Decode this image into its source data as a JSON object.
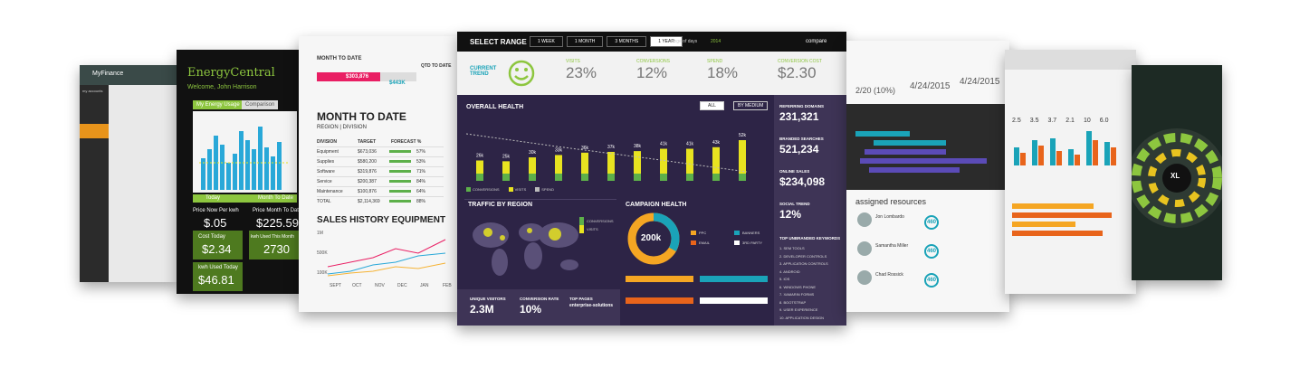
{
  "finance": {
    "title": "MyFinance",
    "menu": "my accounts"
  },
  "energy": {
    "title": "EnergyCentral",
    "welcome": "Welcome, John Harrison",
    "tabs": [
      "My Energy Usage",
      "Comparison"
    ],
    "heads": [
      "Today",
      "Month To Date"
    ],
    "stats": [
      {
        "label": "Price Now Per kwh",
        "value": "$.05"
      },
      {
        "label": "Price Month To Date",
        "value": "$225.59"
      },
      {
        "label": "Cost Today",
        "value": "$2.34"
      },
      {
        "label": "kwh Used This Month",
        "value": "2730"
      },
      {
        "label": "kwh Used Today",
        "value": "$46.81"
      }
    ]
  },
  "mtd": {
    "top": "MONTH TO DATE",
    "qtd": "QTD TO DATE",
    "amount": "$303,876",
    "target": "$443K",
    "title": "MONTH TO DATE",
    "region": "REGION | DIVISION",
    "table": {
      "header": [
        "DIVISION",
        "TARGET",
        "FORECAST %"
      ],
      "rows": [
        [
          "Equipment",
          "$673,036",
          "57%"
        ],
        [
          "Supplies",
          "$580,200",
          "53%"
        ],
        [
          "Software",
          "$319,876",
          "71%"
        ],
        [
          "Service",
          "$200,387",
          "84%"
        ],
        [
          "Maintenance",
          "$100,876",
          "64%"
        ],
        [
          "TOTAL",
          "$2,114,369",
          "88%"
        ]
      ]
    },
    "history": "SALES HISTORY EQUIPMENT",
    "yaxis": [
      "1M",
      "500K",
      "100K"
    ],
    "xaxis": [
      "SEPT",
      "OCT",
      "NOV",
      "DEC",
      "JAN",
      "FEB"
    ]
  },
  "center": {
    "range": "SELECT RANGE",
    "buttons": [
      "1 WEEK",
      "1 MONTH",
      "3 MONTHS",
      "1 YEAR"
    ],
    "days": "range of days",
    "year": "2014",
    "compare": "compare",
    "trend": "CURRENT TREND",
    "kpis": [
      {
        "label": "VISITS",
        "value": "23%"
      },
      {
        "label": "CONVERSIONS",
        "value": "12%"
      },
      {
        "label": "SPEND",
        "value": "18%"
      },
      {
        "label": "CONVERSION COST",
        "value": "$2.30"
      }
    ],
    "health": {
      "title": "OVERALL HEALTH",
      "filters": [
        "ALL",
        "BY MEDIUM"
      ],
      "values": [
        26,
        25,
        30,
        33,
        36,
        37,
        38,
        41,
        41,
        43,
        52
      ],
      "value_labels": [
        "26k",
        "25k",
        "30k",
        "33k",
        "36k",
        "37k",
        "38k",
        "41k",
        "41k",
        "43k",
        "52k"
      ],
      "legend": [
        "CONVERSIONS",
        "VISITS",
        "SPEND"
      ]
    },
    "side": [
      {
        "label": "REFERRING DOMAINS",
        "value": "231,321"
      },
      {
        "label": "BRANDED SEARCHES",
        "value": "521,234"
      },
      {
        "label": "ONLINE SALES",
        "value": "$234,098"
      },
      {
        "label": "SOCIAL TREND",
        "value": "12%"
      }
    ],
    "keywords_title": "TOP UNBRANDED KEYWORDS",
    "keywords": [
      "1. SEM TOOLS",
      "2. DEVELOPER CONTROLS",
      "3. APPLICATION CONTROLS",
      "4. ANDROID",
      "5. IOS",
      "6. WINDOWS PHONE",
      "7. XAMARIN FORMS",
      "8. BOOTSTRAP",
      "9. USER EXPERIENCE",
      "10. APPLICATION DESIGN"
    ],
    "traffic": "TRAFFIC BY REGION",
    "traffic_legend": [
      "CONVERSIONS",
      "VISITS"
    ],
    "campaign": "CAMPAIGN HEALTH",
    "donut": "200k",
    "campaign_legend": [
      "PPC",
      "BANNERS",
      "EMAIL",
      "3RD PARTY"
    ],
    "bottom": [
      {
        "label": "UNIQUE VISITORS",
        "value": "2.3M"
      },
      {
        "label": "CONVERSION RATE",
        "value": "10%"
      },
      {
        "label": "TOP PAGES",
        "value": "enterprise-solutions"
      }
    ]
  },
  "resources": {
    "dates": [
      "2/20 (10%)",
      "4/24/2015",
      "4/24/2015"
    ],
    "title": "assigned resources",
    "people": [
      {
        "name": "Jon Lombardo",
        "hours": "460"
      },
      {
        "name": "Samantha Miller",
        "hours": "460"
      },
      {
        "name": "Chad Rossick",
        "hours": "460"
      }
    ]
  },
  "metrics": {
    "values": [
      "2.5",
      "3.5",
      "3.7",
      "2.1",
      "10",
      "6.0"
    ]
  },
  "radar": {
    "label": "XL"
  }
}
